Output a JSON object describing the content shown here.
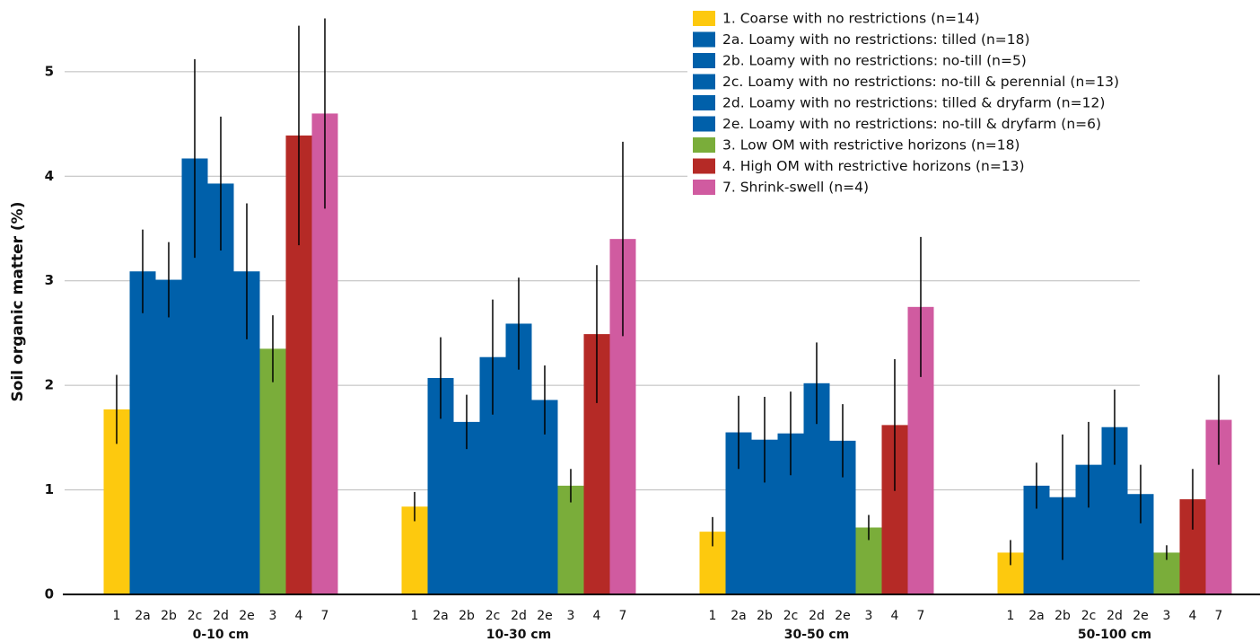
{
  "chart_data": {
    "type": "bar",
    "y_label": "Soil organic matter (%)",
    "categories": [
      "0-10 cm",
      "10-30 cm",
      "30-50 cm",
      "50-100 cm"
    ],
    "bar_labels": [
      "1",
      "2a",
      "2b",
      "2c",
      "2d",
      "2e",
      "3",
      "4",
      "7"
    ],
    "ylim": [
      0,
      5.6
    ],
    "yticks": [
      0,
      1,
      2,
      3,
      4,
      5
    ],
    "grid": true,
    "legend": "upper right",
    "series": [
      {
        "name": "1. Coarse with no restrictions (n=14)",
        "color": "#fdc90e",
        "values": [
          1.77,
          0.84,
          0.6,
          0.4
        ],
        "errors": [
          0.33,
          0.14,
          0.14,
          0.12
        ]
      },
      {
        "name": "2a. Loamy with no restrictions: tilled (n=18)",
        "color": "#0060aa",
        "values": [
          3.09,
          2.07,
          1.55,
          1.04
        ],
        "errors": [
          0.4,
          0.39,
          0.35,
          0.22
        ]
      },
      {
        "name": "2b. Loamy with no restrictions: no-till (n=5)",
        "color": "#0060aa",
        "values": [
          3.01,
          1.65,
          1.48,
          0.93
        ],
        "errors": [
          0.36,
          0.26,
          0.41,
          0.6
        ]
      },
      {
        "name": "2c. Loamy with no restrictions: no-till & perennial (n=13)",
        "color": "#0060aa",
        "values": [
          4.17,
          2.27,
          1.54,
          1.24
        ],
        "errors": [
          0.95,
          0.55,
          0.4,
          0.41
        ]
      },
      {
        "name": "2d. Loamy with no restrictions: tilled & dryfarm (n=12)",
        "color": "#0060aa",
        "values": [
          3.93,
          2.59,
          2.02,
          1.6
        ],
        "errors": [
          0.64,
          0.44,
          0.39,
          0.36
        ]
      },
      {
        "name": "2e. Loamy with no restrictions: no-till & dryfarm (n=6)",
        "color": "#0060aa",
        "values": [
          3.09,
          1.86,
          1.47,
          0.96
        ],
        "errors": [
          0.65,
          0.33,
          0.35,
          0.28
        ]
      },
      {
        "name": "3. Low OM with restrictive horizons (n=18)",
        "color": "#7aad3a",
        "values": [
          2.35,
          1.04,
          0.64,
          0.4
        ],
        "errors": [
          0.32,
          0.16,
          0.12,
          0.07
        ]
      },
      {
        "name": "4. High OM with restrictive horizons (n=13)",
        "color": "#b52a26",
        "values": [
          4.39,
          2.49,
          1.62,
          0.91
        ],
        "errors": [
          1.05,
          0.66,
          0.63,
          0.29
        ]
      },
      {
        "name": "7. Shrink-swell (n=4)",
        "color": "#d05ba0",
        "values": [
          4.6,
          3.4,
          2.75,
          1.67
        ],
        "errors": [
          0.91,
          0.93,
          0.67,
          0.43
        ]
      }
    ]
  }
}
